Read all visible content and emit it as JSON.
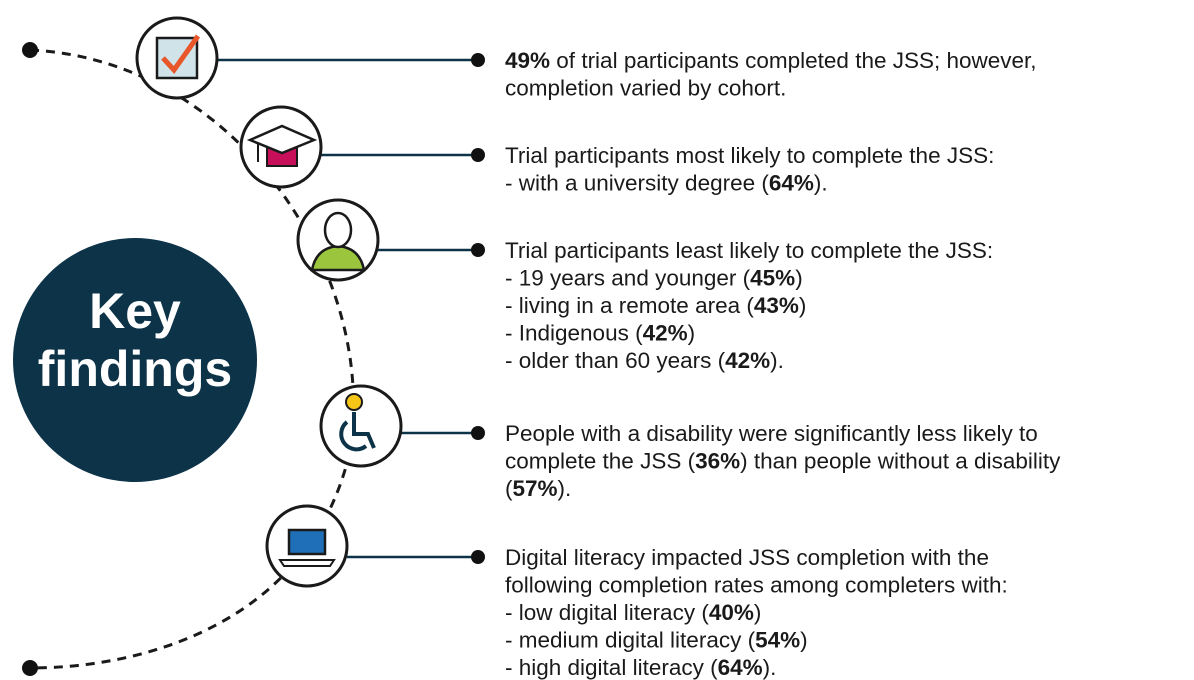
{
  "title": [
    "Key",
    "findings"
  ],
  "findings": [
    {
      "lines": [
        [
          {
            "text": "49%",
            "bold": true
          },
          " of trial participants completed the JSS; however,"
        ],
        [
          "completion varied by cohort."
        ]
      ]
    },
    {
      "lines": [
        [
          "Trial participants most likely to complete the JSS:"
        ],
        [
          "- with a university degree (",
          {
            "text": "64%",
            "bold": true
          },
          ")."
        ]
      ]
    },
    {
      "lines": [
        [
          "Trial participants least likely to complete the JSS:"
        ],
        [
          "- 19 years and younger (",
          {
            "text": "45%",
            "bold": true
          },
          ")"
        ],
        [
          "- living in a remote area (",
          {
            "text": "43%",
            "bold": true
          },
          ")"
        ],
        [
          "- Indigenous (",
          {
            "text": "42%",
            "bold": true
          },
          ")"
        ],
        [
          "- older than 60 years (",
          {
            "text": "42%",
            "bold": true
          },
          ")."
        ]
      ]
    },
    {
      "lines": [
        [
          "People with a disability were significantly less likely to"
        ],
        [
          "complete the JSS (",
          {
            "text": "36%",
            "bold": true
          },
          ") than people without a disability"
        ],
        [
          "(",
          {
            "text": "57%",
            "bold": true
          },
          ")."
        ]
      ]
    },
    {
      "lines": [
        [
          "Digital literacy impacted JSS completion with the"
        ],
        [
          "following completion rates among completers with:"
        ],
        [
          "- low digital literacy (",
          {
            "text": "40%",
            "bold": true
          },
          ")"
        ],
        [
          "- medium digital literacy (",
          {
            "text": "54%",
            "bold": true
          },
          ")"
        ],
        [
          "- high digital literacy (",
          {
            "text": "64%",
            "bold": true
          },
          ")."
        ]
      ]
    }
  ]
}
